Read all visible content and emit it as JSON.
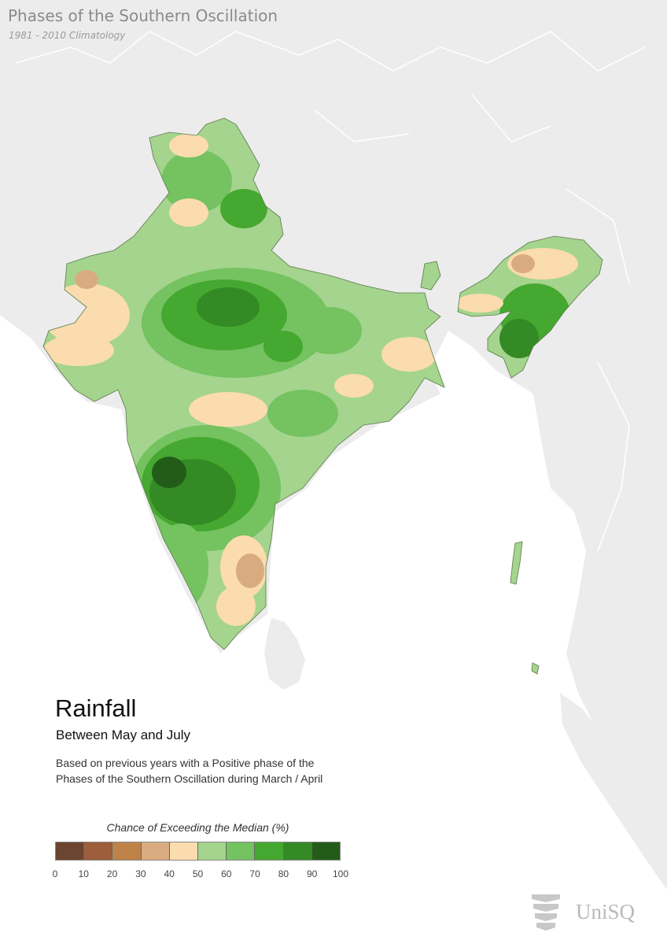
{
  "title": "Phases of the Southern Oscillation",
  "subtitle": "1981 - 2010 Climatology",
  "heading": "Rainfall",
  "period": "Between May and July",
  "description": [
    "Based on previous years with a Positive phase of the",
    "Phases of the Southern Oscillation during March / April"
  ],
  "legend": {
    "title": "Chance of Exceeding the Median (%)",
    "ticks": [
      "0",
      "10",
      "20",
      "30",
      "40",
      "50",
      "60",
      "70",
      "80",
      "90",
      "100"
    ],
    "colors": [
      "#6b4530",
      "#9c5e3b",
      "#bf8248",
      "#d9ac80",
      "#fbdcae",
      "#a4d48e",
      "#74c260",
      "#45a830",
      "#348a24",
      "#225c18"
    ]
  },
  "logo": {
    "text": "UniSQ",
    "icon": "unisq-logo-icon"
  },
  "colors": {
    "background_land": "#ececec",
    "sea": "#ffffff"
  }
}
